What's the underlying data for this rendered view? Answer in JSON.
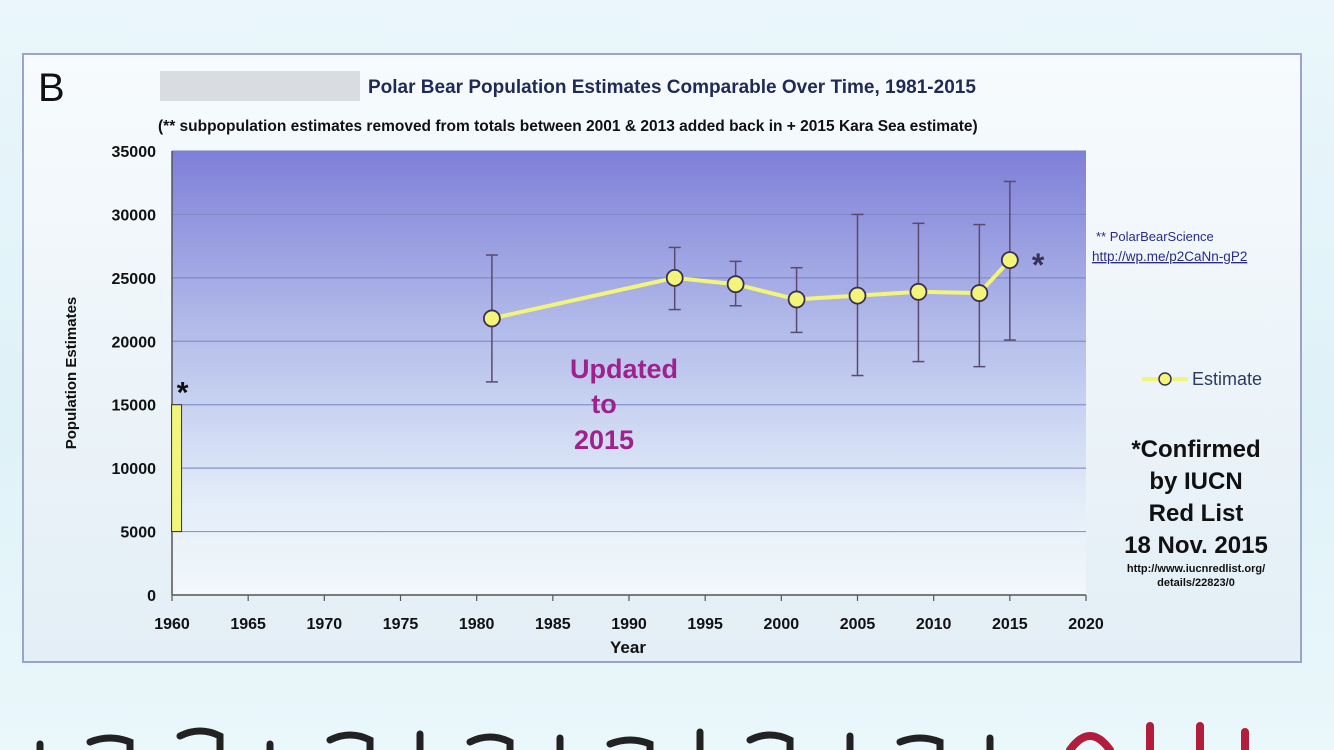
{
  "chart_data": {
    "type": "line",
    "panel_letter": "B",
    "title": "Polar Bear Population Estimates Comparable Over Time, 1981-2015",
    "subtitle": "(** subpopulation estimates removed from totals between 2001 & 2013 added back in + 2015 Kara Sea estimate)",
    "xlabel": "Year",
    "ylabel": "Population Estimates",
    "xlim": [
      1960,
      2020
    ],
    "ylim": [
      0,
      35000
    ],
    "x_ticks": [
      1960,
      1965,
      1970,
      1975,
      1980,
      1985,
      1990,
      1995,
      2000,
      2005,
      2010,
      2015,
      2020
    ],
    "y_ticks": [
      0,
      5000,
      10000,
      15000,
      20000,
      25000,
      30000,
      35000
    ],
    "grid": "horizontal",
    "legend_position": "right",
    "series": [
      {
        "name": "Estimate",
        "color": "#f2f57a",
        "points": [
          {
            "x": 1981,
            "y": 21800,
            "low": 16800,
            "high": 26800
          },
          {
            "x": 1993,
            "y": 25000,
            "low": 22500,
            "high": 27400
          },
          {
            "x": 1997,
            "y": 24500,
            "low": 22800,
            "high": 26300
          },
          {
            "x": 2001,
            "y": 23300,
            "low": 20700,
            "high": 25800
          },
          {
            "x": 2005,
            "y": 23600,
            "low": 17300,
            "high": 30000
          },
          {
            "x": 2009,
            "y": 23900,
            "low": 18400,
            "high": 29300
          },
          {
            "x": 2013,
            "y": 23800,
            "low": 18000,
            "high": 29200
          },
          {
            "x": 2015,
            "y": 26400,
            "low": 20100,
            "high": 32600
          }
        ]
      }
    ],
    "bar_1960": {
      "x": 1960.3,
      "low": 5000,
      "high": 15000,
      "color": "#f2f57a",
      "label": "*"
    },
    "end_asterisk": "*",
    "updated_note": [
      "Updated",
      "to",
      "2015"
    ],
    "source_note": [
      "** PolarBearScience",
      "http://wp.me/p2CaNn-gP2"
    ],
    "iucn_note": {
      "lines": [
        "*Confirmed",
        "by IUCN",
        "Red List",
        "18 Nov. 2015"
      ],
      "url_lines": [
        "http://www.iucnredlist.org/",
        "details/22823/0"
      ]
    }
  },
  "colors": {
    "plot_top": "#7f7fd8",
    "plot_bottom": "#f2f8fb",
    "gridline": "#7b86c4",
    "marker_edge": "#3a2f55",
    "errorbar": "#5a4a6e",
    "updated_text": "#a0218c",
    "bottom_accent": "#b01e3c"
  }
}
